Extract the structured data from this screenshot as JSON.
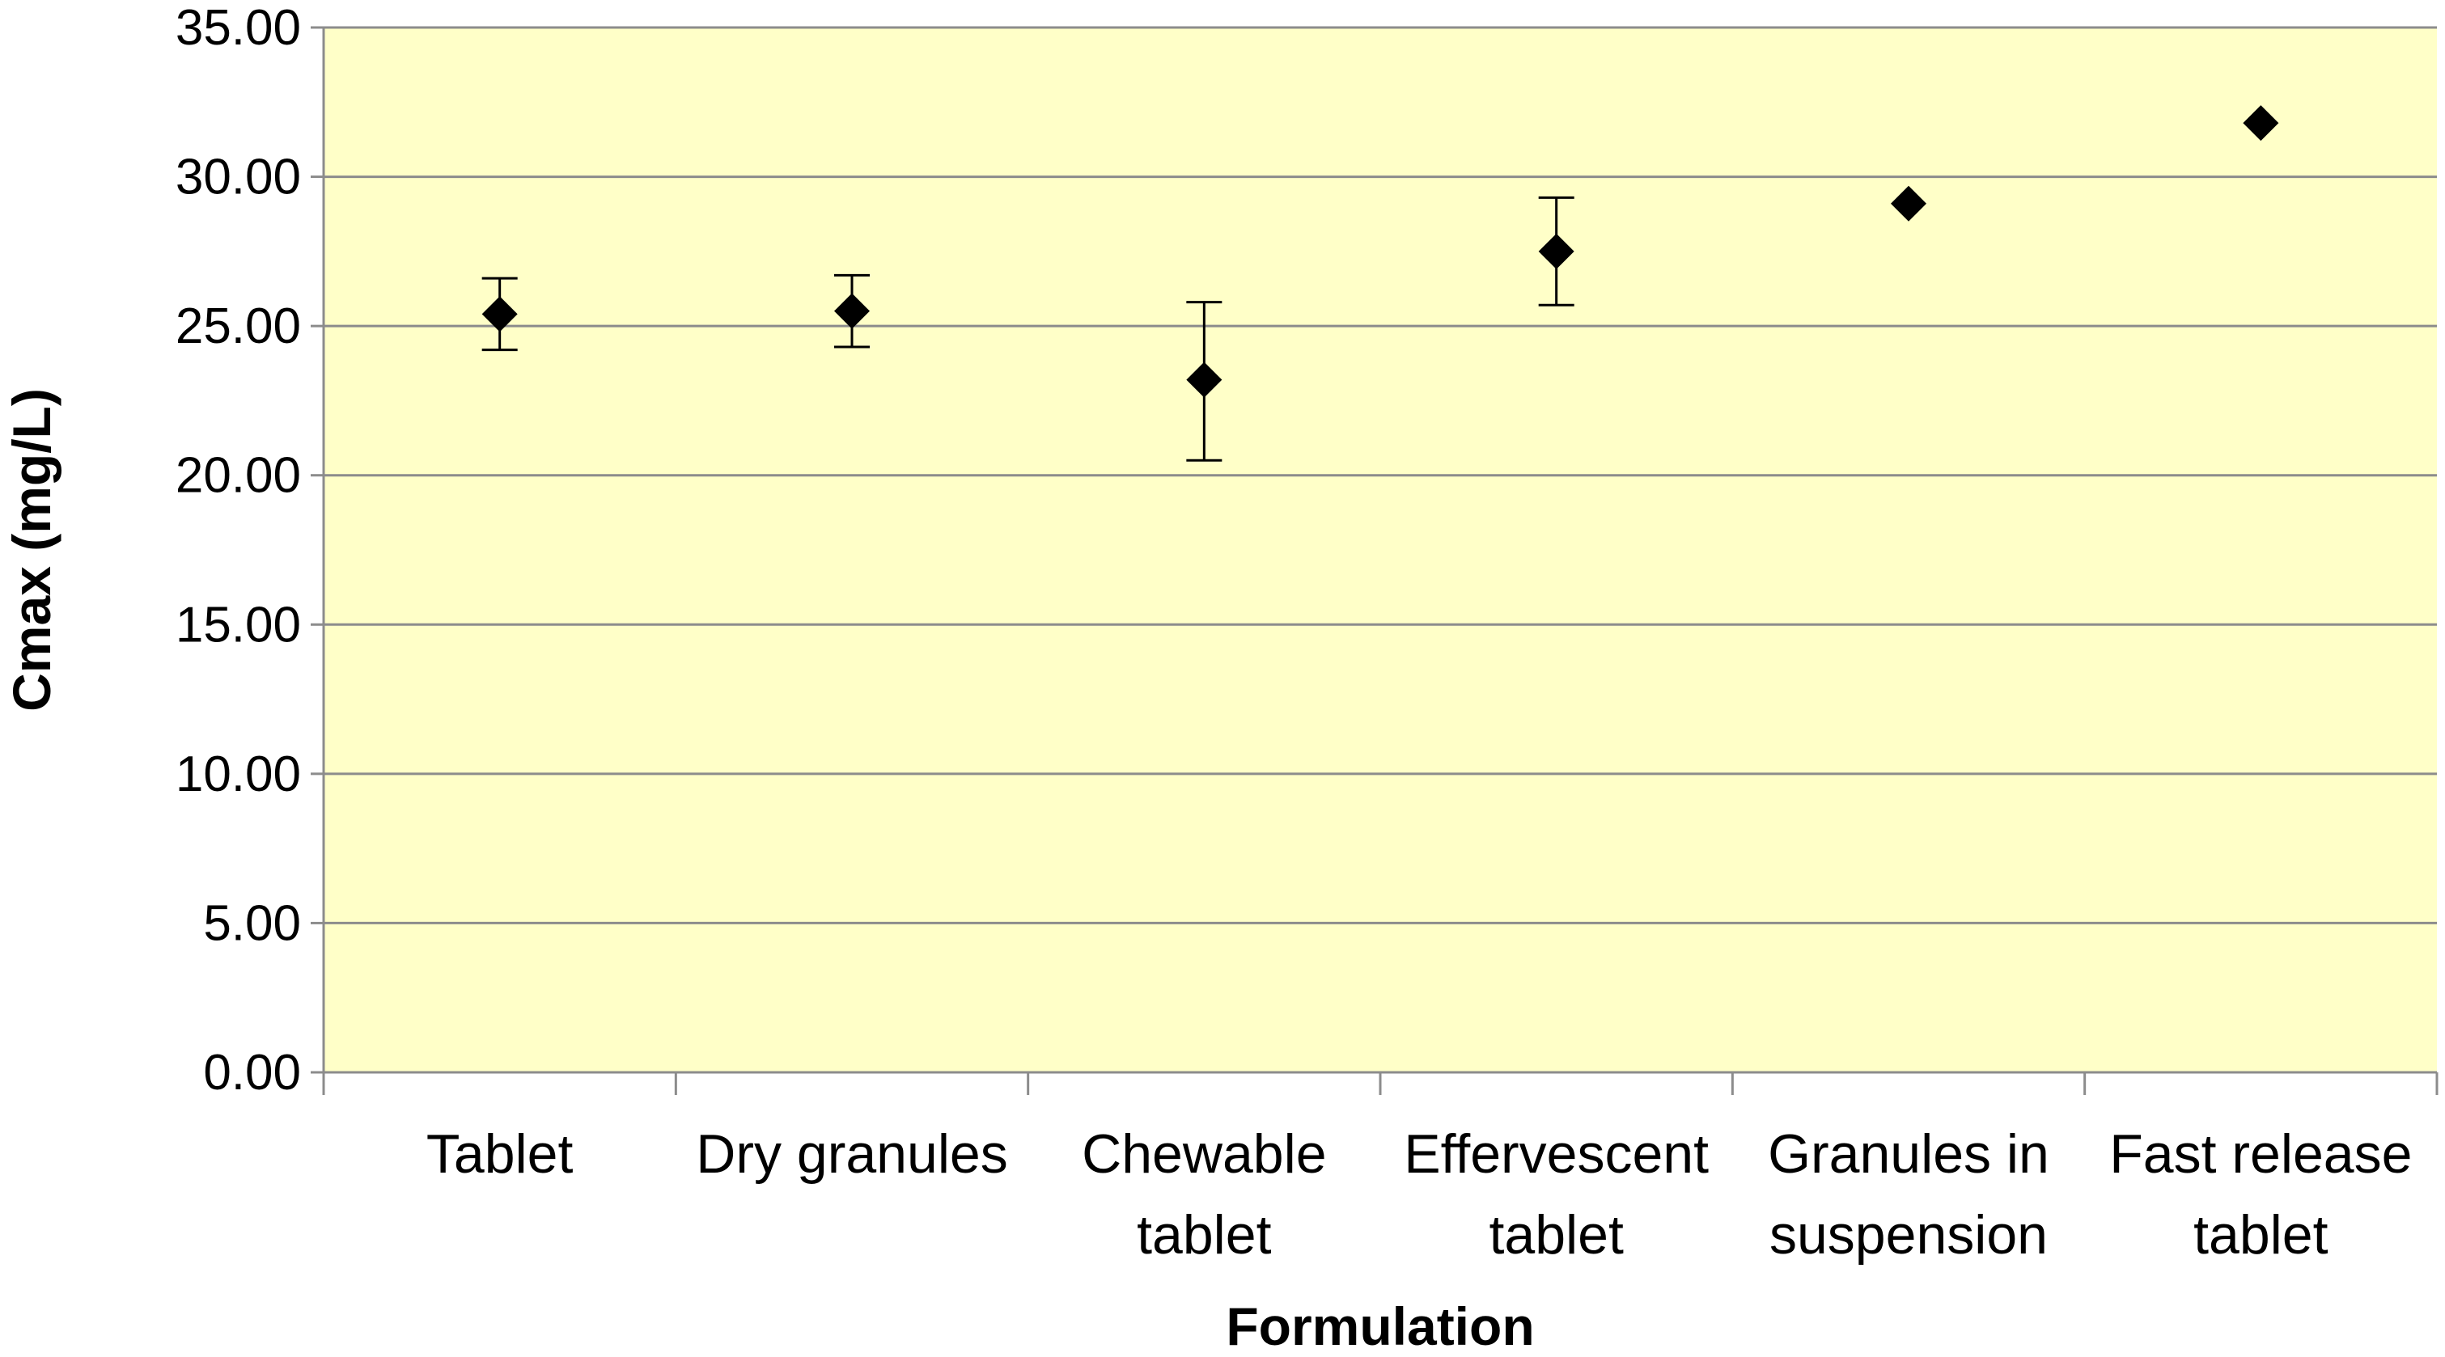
{
  "chart_data": {
    "type": "scatter",
    "title": "",
    "xlabel": "Formulation",
    "ylabel": "Cmax (mg/L)",
    "categories": [
      [
        "Tablet"
      ],
      [
        "Dry granules"
      ],
      [
        "Chewable",
        "tablet"
      ],
      [
        "Effervescent",
        "tablet"
      ],
      [
        "Granules in",
        "suspension"
      ],
      [
        "Fast release",
        "tablet"
      ]
    ],
    "series": [
      {
        "values": [
          25.4,
          25.5,
          23.2,
          27.5,
          29.1,
          31.8
        ],
        "error_low": [
          24.2,
          24.3,
          20.5,
          25.7,
          null,
          null
        ],
        "error_high": [
          26.6,
          26.7,
          25.8,
          29.3,
          null,
          null
        ]
      }
    ],
    "ylim": [
      0,
      35
    ],
    "yticks": [
      "0.00",
      "5.00",
      "10.00",
      "15.00",
      "20.00",
      "25.00",
      "30.00",
      "35.00"
    ],
    "grid": true,
    "legend": "none",
    "colors": {
      "plot_background": "#ffffc8",
      "gridline": "#8c8c8c",
      "marker": "#000000"
    }
  }
}
